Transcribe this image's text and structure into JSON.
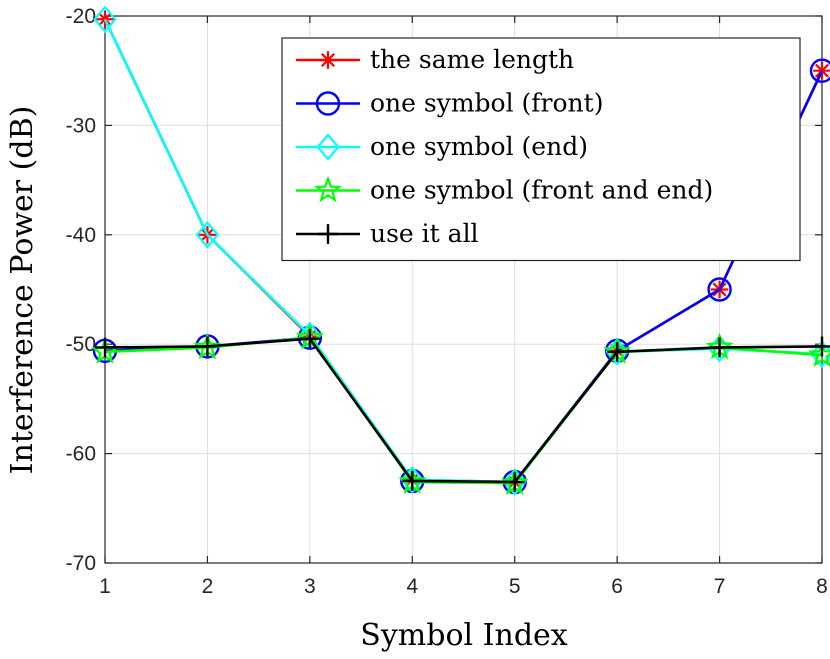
{
  "chart_data": {
    "type": "line",
    "title": "",
    "xlabel": "Symbol Index",
    "ylabel": "Interference Power (dB)",
    "xlim": [
      1,
      8
    ],
    "ylim": [
      -70,
      -20
    ],
    "xticks": [
      "1",
      "2",
      "3",
      "4",
      "5",
      "6",
      "7",
      "8"
    ],
    "yticks": [
      "-70",
      "-60",
      "-50",
      "-40",
      "-30",
      "-20"
    ],
    "grid": true,
    "legend_position": "top-right",
    "x": [
      1,
      2,
      3,
      4,
      5,
      6,
      7,
      8
    ],
    "series": [
      {
        "name": "the same length",
        "color": "#ff0000",
        "marker": "asterisk",
        "values": [
          -20.3,
          -40.0,
          -49.3,
          -62.4,
          -62.6,
          -50.6,
          -45.0,
          -25.0
        ]
      },
      {
        "name": "one symbol (front)",
        "color": "#0000ff",
        "marker": "circle",
        "values": [
          -50.6,
          -50.2,
          -49.4,
          -62.5,
          -62.6,
          -50.6,
          -45.0,
          -25.0
        ]
      },
      {
        "name": "one symbol (end)",
        "color": "#00ffff",
        "marker": "diamond",
        "values": [
          -20.3,
          -40.0,
          -49.2,
          -62.4,
          -62.6,
          -50.7,
          -50.4,
          -50.9
        ]
      },
      {
        "name": "one symbol (front and end)",
        "color": "#00ff00",
        "marker": "pentagram",
        "values": [
          -50.7,
          -50.3,
          -49.4,
          -62.6,
          -62.7,
          -50.7,
          -50.3,
          -51.0
        ]
      },
      {
        "name": "use it all",
        "color": "#000000",
        "marker": "plus",
        "values": [
          -50.3,
          -50.2,
          -49.5,
          -62.5,
          -62.6,
          -50.7,
          -50.3,
          -50.2
        ]
      }
    ]
  }
}
